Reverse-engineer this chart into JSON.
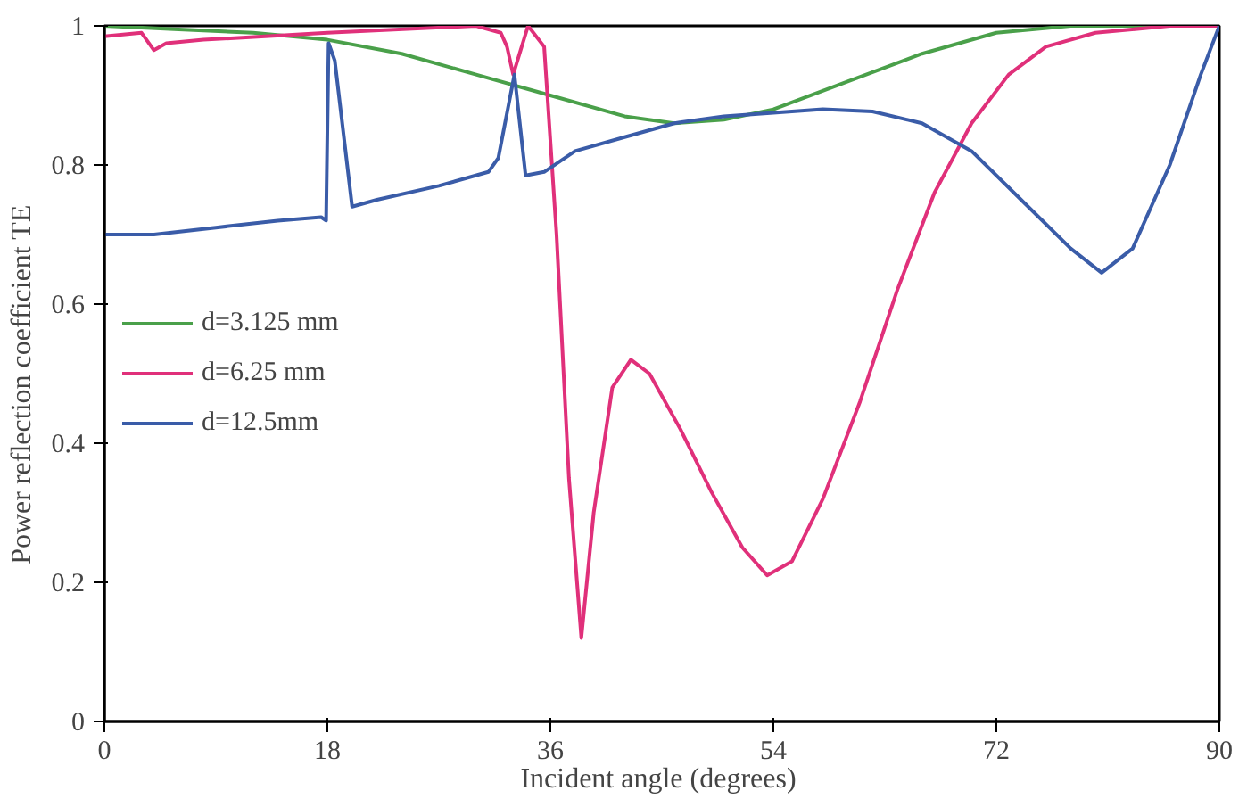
{
  "chart_data": {
    "type": "line",
    "xlabel": "Incident  angle (degrees)",
    "ylabel": "Power  reflection  coefficient  TE",
    "xlim": [
      0,
      90
    ],
    "ylim": [
      0,
      1
    ],
    "xticks": [
      0,
      18,
      36,
      54,
      72,
      90
    ],
    "yticks": [
      0,
      0.2,
      0.4,
      0.6,
      0.8,
      1
    ],
    "grid": false,
    "legend": "left",
    "marker": "none",
    "line_style": "solid",
    "series": [
      {
        "name": "d=3.125 mm",
        "color": "#4aa04a",
        "x": [
          0,
          6,
          12,
          18,
          24,
          30,
          36,
          42,
          46,
          50,
          54,
          60,
          66,
          72,
          78,
          84,
          90
        ],
        "values": [
          1.0,
          0.995,
          0.99,
          0.98,
          0.96,
          0.93,
          0.9,
          0.87,
          0.86,
          0.865,
          0.88,
          0.92,
          0.96,
          0.99,
          1.0,
          1.0,
          1.0
        ]
      },
      {
        "name": "d=6.25 mm",
        "color": "#e0307a",
        "x": [
          0,
          3,
          4,
          5,
          8,
          18,
          30,
          32,
          32.5,
          33,
          34.2,
          35.5,
          36.5,
          37.5,
          38.5,
          39.5,
          41,
          42.5,
          44,
          46.5,
          49,
          51.5,
          53.5,
          55.5,
          58,
          61,
          64,
          67,
          70,
          73,
          76,
          80,
          86,
          90
        ],
        "values": [
          0.985,
          0.99,
          0.965,
          0.975,
          0.98,
          0.99,
          1.0,
          0.99,
          0.97,
          0.93,
          1.0,
          0.97,
          0.7,
          0.35,
          0.12,
          0.3,
          0.48,
          0.52,
          0.5,
          0.42,
          0.33,
          0.25,
          0.21,
          0.23,
          0.32,
          0.46,
          0.62,
          0.76,
          0.86,
          0.93,
          0.97,
          0.99,
          1.0,
          1.0
        ]
      },
      {
        "name": "d=12.5mm",
        "color": "#3a5ca8",
        "x": [
          0,
          4,
          9,
          14,
          17.5,
          17.9,
          18.1,
          18.6,
          20,
          22,
          27,
          31,
          31.8,
          33.1,
          34,
          35.5,
          38,
          42,
          46,
          50,
          54,
          58,
          62,
          66,
          70,
          74,
          78,
          80.5,
          83,
          86,
          88.5,
          90
        ],
        "values": [
          0.7,
          0.7,
          0.71,
          0.72,
          0.725,
          0.72,
          0.975,
          0.95,
          0.74,
          0.75,
          0.77,
          0.79,
          0.81,
          0.93,
          0.785,
          0.79,
          0.82,
          0.84,
          0.86,
          0.87,
          0.875,
          0.88,
          0.877,
          0.86,
          0.82,
          0.75,
          0.68,
          0.645,
          0.68,
          0.8,
          0.93,
          1.0
        ]
      }
    ]
  }
}
